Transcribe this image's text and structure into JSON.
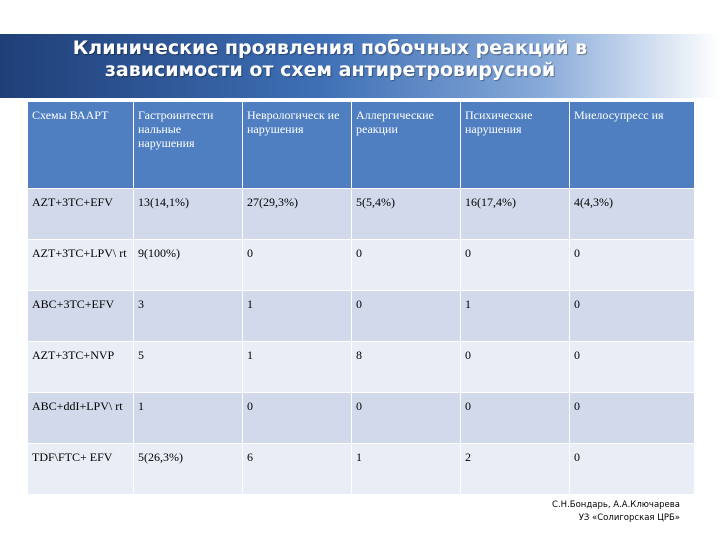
{
  "slide": {
    "title_line1": "Клинические проявления побочных реакций в",
    "title_line2": "зависимости от схем антиретровирусной"
  },
  "table": {
    "headers": [
      "Схемы ВААРТ",
      "Гастроинтести нальные нарушения",
      "Неврологическ ие нарушения",
      "Аллергические реакции",
      "Психические нарушения",
      "Миелосупресс ия"
    ],
    "rows": [
      [
        "AZT+3TC+EFV",
        "13(14,1%)",
        "27(29,3%)",
        "5(5,4%)",
        "16(17,4%)",
        "4(4,3%)"
      ],
      [
        "AZT+3TC+LPV\\ rt",
        "9(100%)",
        "0",
        "0",
        "0",
        "0"
      ],
      [
        "ABC+3TC+EFV",
        "3",
        "1",
        "0",
        "1",
        "0"
      ],
      [
        "AZT+3TC+NVP",
        "5",
        "1",
        "8",
        "0",
        "0"
      ],
      [
        "ABC+ddI+LPV\\ rt",
        "1",
        "0",
        "0",
        "0",
        "0"
      ],
      [
        "TDF\\FTC+ EFV",
        "5(26,3%)",
        "6",
        "1",
        "2",
        "0"
      ]
    ]
  },
  "footer": {
    "line1": "С.Н.Бондарь, А.А.Ключарева",
    "line2": "УЗ «Солигорская ЦРБ»"
  },
  "colors": {
    "title_bar": "#1f3f78",
    "header_bg": "#4f7fc0",
    "row_odd": "#d1d9ea",
    "row_even": "#e9edf5"
  }
}
